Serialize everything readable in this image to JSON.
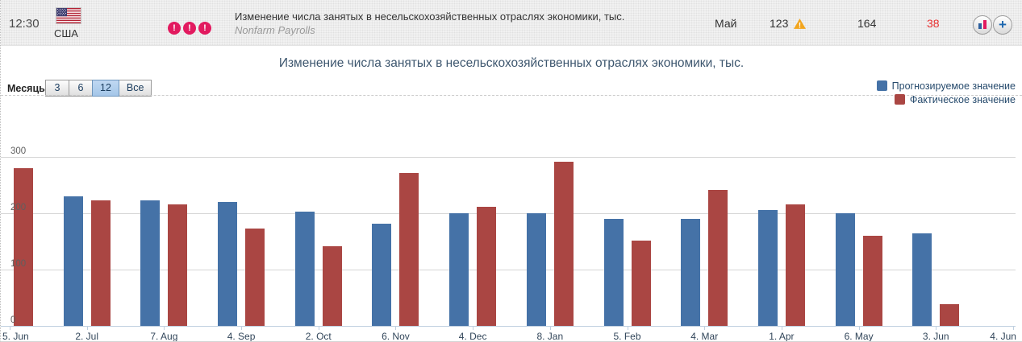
{
  "event": {
    "time": "12:30",
    "country": "США",
    "importance_level": 3,
    "title": "Изменение числа занятых в несельскохозяйственных отраслях экономики, тыс.",
    "subtitle": "Nonfarm Payrolls",
    "period": "Май",
    "previous": "123",
    "forecast": "164",
    "actual": "38",
    "actual_color": "#e83030",
    "icons": {
      "flag": "us-flag-icon",
      "importance": "exclamation-circle-icon",
      "revised_warning": "warning-triangle-icon",
      "chart_button": "bar-chart-icon",
      "add_button": "plus-icon"
    },
    "colors": {
      "importance": "#e21a5f",
      "warning_triangle": "#f2a51e"
    }
  },
  "chart": {
    "title": "Изменение числа занятых в несельскохозяйственных отраслях экономики, тыс.",
    "months_label": "Месяцы",
    "range_buttons": [
      "3",
      "6",
      "12",
      "Все"
    ],
    "selected_range": "12"
  },
  "chart_data": {
    "type": "bar",
    "title": "Изменение числа занятых в несельскохозяйственных отраслях экономики, тыс.",
    "categories": [
      "5. Jun",
      "2. Jul",
      "7. Aug",
      "4. Sep",
      "2. Oct",
      "6. Nov",
      "4. Dec",
      "8. Jan",
      "5. Feb",
      "4. Mar",
      "1. Apr",
      "6. May",
      "3. Jun",
      "4. Jun"
    ],
    "series": [
      {
        "name": "Прогнозируемое значение",
        "color": "#4572a7",
        "values": [
          null,
          230,
          223,
          220,
          203,
          182,
          200,
          200,
          190,
          190,
          205,
          200,
          164,
          null
        ]
      },
      {
        "name": "Фактическое значение",
        "color": "#aa4643",
        "values": [
          280,
          223,
          215,
          173,
          142,
          271,
          211,
          292,
          151,
          242,
          215,
          160,
          38,
          null
        ]
      }
    ],
    "ylim": [
      0,
      300
    ],
    "yticks": [
      0,
      100,
      200,
      300
    ],
    "grid": true,
    "legend_position": "top-right"
  }
}
